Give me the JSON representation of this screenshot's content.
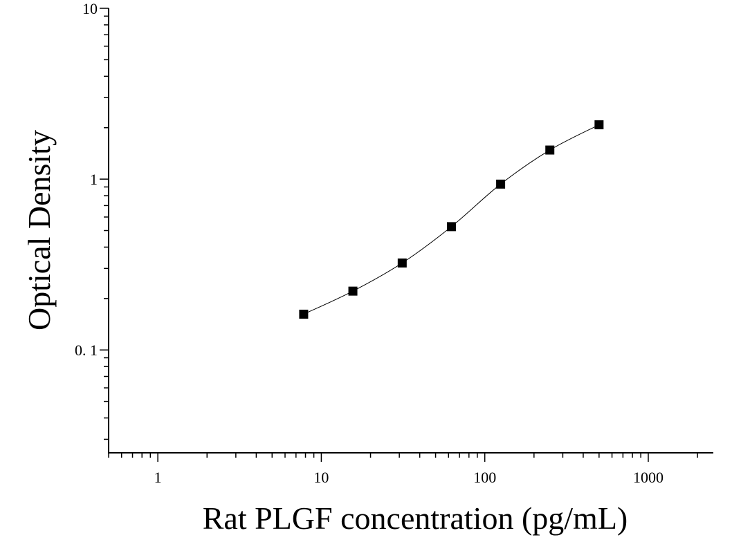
{
  "chart_data": {
    "type": "scatter",
    "xscale": "log",
    "yscale": "log",
    "xlim": [
      0.5,
      2500
    ],
    "ylim": [
      0.025,
      10
    ],
    "xlabel": "Rat PLGF concentration (pg/mL)",
    "ylabel": "Optical Density",
    "x_ticks": [
      {
        "value": 1,
        "label": "1"
      },
      {
        "value": 10,
        "label": "10"
      },
      {
        "value": 100,
        "label": "100"
      },
      {
        "value": 1000,
        "label": "1000"
      }
    ],
    "y_ticks": [
      {
        "value": 0.1,
        "label": "0. 1"
      },
      {
        "value": 1,
        "label": "1"
      },
      {
        "value": 10,
        "label": "10"
      }
    ],
    "series": [
      {
        "x": [
          7.8,
          15.6,
          31.25,
          62.5,
          125,
          250,
          500
        ],
        "y": [
          0.162,
          0.221,
          0.323,
          0.527,
          0.935,
          1.48,
          2.08
        ],
        "marker": "square",
        "color": "#000000",
        "fit_curve": true
      }
    ],
    "grid": false,
    "legend": "none"
  }
}
